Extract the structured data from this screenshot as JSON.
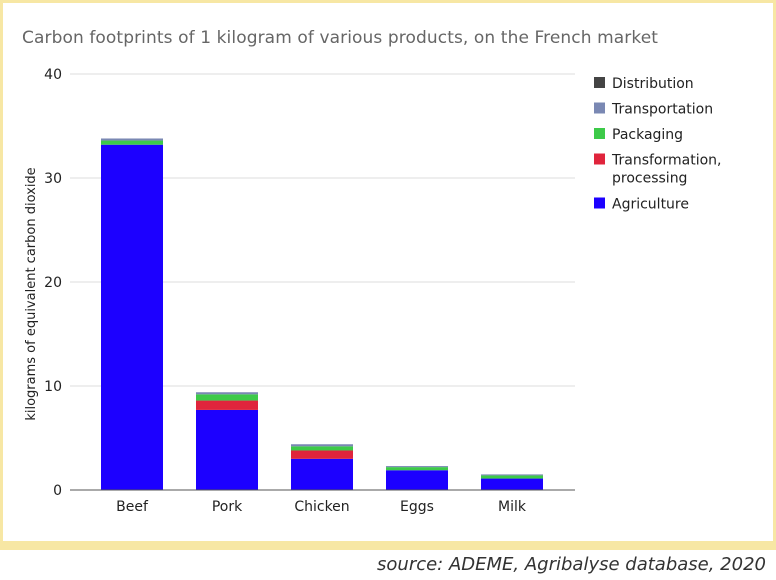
{
  "chart_data": {
    "type": "bar",
    "stacked": true,
    "title": "Carbon footprints of 1 kilogram of various products, on the French market",
    "xlabel": "",
    "ylabel": "kilograms of equivalent carbon dioxide",
    "ylim": [
      0,
      40
    ],
    "yticks": [
      0,
      10,
      20,
      30,
      40
    ],
    "grid": true,
    "legend_position": "right",
    "categories": [
      "Beef",
      "Pork",
      "Chicken",
      "Eggs",
      "Milk"
    ],
    "series": [
      {
        "name": "Agriculture",
        "color": "#1c00ff",
        "values": [
          33.2,
          7.7,
          3.0,
          1.9,
          1.1
        ]
      },
      {
        "name": "Transformation, processing",
        "color": "#e0243c",
        "values": [
          0.0,
          0.9,
          0.8,
          0.0,
          0.0
        ]
      },
      {
        "name": "Packaging",
        "color": "#3dca49",
        "values": [
          0.4,
          0.6,
          0.4,
          0.3,
          0.3
        ]
      },
      {
        "name": "Transportation",
        "color": "#7a88b3",
        "values": [
          0.2,
          0.2,
          0.2,
          0.1,
          0.1
        ]
      },
      {
        "name": "Distribution",
        "color": "#444444",
        "values": [
          0.0,
          0.0,
          0.0,
          0.0,
          0.0
        ]
      }
    ]
  },
  "footer": {
    "source": "source: ADEME, Agribalyse database, 2020"
  }
}
